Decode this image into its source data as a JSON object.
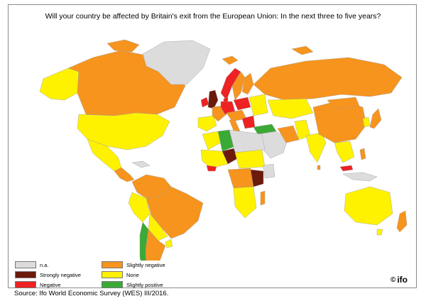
{
  "title": "Will your country be affected by Britain's exit from the European Union: In the next three to five years?",
  "source": "Source: Ifo World Economic Survey (WES) III/2016.",
  "logo": {
    "copyright": "©",
    "text": "ifo"
  },
  "colors": {
    "na": "#dcdcdc",
    "strongly_negative": "#6b1a0c",
    "negative": "#ee2222",
    "slightly_negative": "#f7941d",
    "none": "#fff200",
    "slightly_positive": "#3aa935",
    "water": "#ffffff"
  },
  "legend": [
    {
      "key": "na",
      "label": "n.a.",
      "color": "#dcdcdc"
    },
    {
      "key": "strongly_negative",
      "label": "Strongly negative",
      "color": "#6b1a0c"
    },
    {
      "key": "negative",
      "label": "Negative",
      "color": "#ee2222"
    },
    {
      "key": "slightly_negative",
      "label": "Slightly negative",
      "color": "#f7941d"
    },
    {
      "key": "none",
      "label": "None",
      "color": "#fff200"
    },
    {
      "key": "slightly_positive",
      "label": "Slightly positive",
      "color": "#3aa935"
    }
  ]
}
